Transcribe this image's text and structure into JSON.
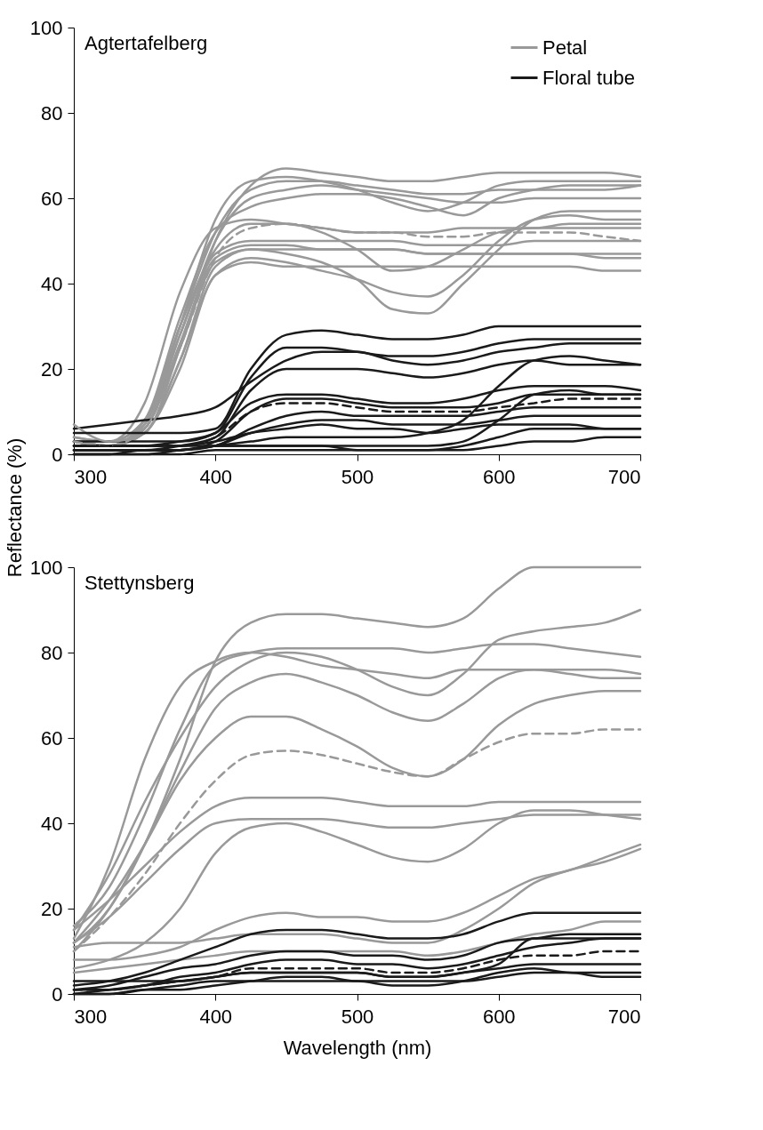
{
  "chart_data": [
    {
      "type": "line",
      "title": "Agtertafelberg",
      "ylabel": "Reflectance (%)",
      "xlim": [
        300,
        700
      ],
      "ylim": [
        0,
        100
      ],
      "xticks": [
        300,
        400,
        500,
        600,
        700
      ],
      "yticks": [
        0,
        20,
        40,
        60,
        80,
        100
      ],
      "grid": false,
      "legend": "top right",
      "x": [
        300,
        325,
        350,
        375,
        400,
        425,
        450,
        475,
        500,
        525,
        550,
        575,
        600,
        625,
        650,
        675,
        700
      ],
      "series": [
        {
          "name": "Petal",
          "color": "#999999",
          "values": [
            7,
            3,
            5,
            25,
            50,
            63,
            67,
            66,
            65,
            64,
            64,
            65,
            66,
            66,
            66,
            66,
            65
          ]
        },
        {
          "color": "#999999",
          "values": [
            4,
            3,
            8,
            30,
            52,
            62,
            64,
            64,
            63,
            62,
            61,
            61,
            62,
            62,
            62,
            62,
            63
          ]
        },
        {
          "color": "#999999",
          "values": [
            3,
            2,
            6,
            28,
            50,
            60,
            62,
            63,
            62,
            61,
            60,
            59,
            59,
            60,
            60,
            60,
            60
          ]
        },
        {
          "color": "#999999",
          "values": [
            3,
            2,
            6,
            25,
            45,
            48,
            47,
            45,
            41,
            34,
            33,
            40,
            48,
            55,
            57,
            57,
            57
          ]
        },
        {
          "color": "#999999",
          "values": [
            2,
            2,
            5,
            22,
            42,
            46,
            45,
            43,
            41,
            38,
            37,
            42,
            50,
            55,
            56,
            55,
            55
          ]
        },
        {
          "color": "#999999",
          "values": [
            3,
            3,
            8,
            30,
            48,
            54,
            54,
            52,
            48,
            43,
            44,
            48,
            52,
            53,
            53,
            53,
            53
          ]
        },
        {
          "color": "#999999",
          "values": [
            4,
            3,
            12,
            38,
            53,
            55,
            54,
            53,
            52,
            52,
            52,
            53,
            53,
            53,
            54,
            54,
            54
          ]
        },
        {
          "color": "#999999",
          "values": [
            3,
            2,
            6,
            26,
            46,
            49,
            49,
            48,
            48,
            48,
            47,
            47,
            47,
            47,
            47,
            46,
            46
          ]
        },
        {
          "color": "#999999",
          "values": [
            2,
            2,
            5,
            22,
            44,
            48,
            48,
            48,
            48,
            48,
            47,
            47,
            47,
            47,
            47,
            47,
            47
          ]
        },
        {
          "color": "#999999",
          "values": [
            3,
            2,
            7,
            28,
            47,
            50,
            50,
            50,
            50,
            50,
            49,
            49,
            49,
            50,
            50,
            50,
            50
          ]
        },
        {
          "color": "#999999",
          "values": [
            2,
            2,
            5,
            20,
            42,
            45,
            44,
            44,
            44,
            44,
            44,
            44,
            44,
            44,
            44,
            43,
            43
          ]
        },
        {
          "color": "#999999",
          "values": [
            3,
            2,
            8,
            32,
            52,
            58,
            60,
            61,
            61,
            60,
            58,
            56,
            60,
            62,
            63,
            63,
            63
          ]
        },
        {
          "color": "#999999",
          "line_style": "dashed",
          "values": [
            3,
            2,
            6,
            25,
            46,
            53,
            54,
            53,
            52,
            52,
            51,
            51,
            52,
            52,
            52,
            51,
            50
          ]
        },
        {
          "color": "#999999",
          "values": [
            3,
            2,
            7,
            30,
            55,
            64,
            65,
            64,
            62,
            59,
            57,
            59,
            63,
            64,
            64,
            64,
            64
          ]
        },
        {
          "name": "Floral tube",
          "color": "#1a1a1a",
          "values": [
            5,
            5,
            5,
            5,
            6,
            20,
            28,
            29,
            28,
            27,
            27,
            28,
            30,
            30,
            30,
            30,
            30
          ]
        },
        {
          "color": "#1a1a1a",
          "values": [
            2,
            2,
            2,
            3,
            5,
            18,
            25,
            25,
            24,
            23,
            23,
            24,
            26,
            27,
            27,
            27,
            27
          ]
        },
        {
          "color": "#1a1a1a",
          "values": [
            6,
            7,
            8,
            9,
            11,
            17,
            22,
            24,
            24,
            22,
            21,
            22,
            24,
            25,
            26,
            26,
            26
          ]
        },
        {
          "color": "#1a1a1a",
          "values": [
            1,
            1,
            1,
            2,
            4,
            15,
            20,
            20,
            20,
            19,
            18,
            19,
            21,
            22,
            21,
            21,
            21
          ]
        },
        {
          "color": "#1a1a1a",
          "values": [
            0,
            0,
            1,
            1,
            2,
            3,
            4,
            4,
            4,
            4,
            5,
            8,
            16,
            22,
            23,
            22,
            21
          ]
        },
        {
          "color": "#1a1a1a",
          "values": [
            3,
            3,
            3,
            3,
            5,
            12,
            14,
            14,
            13,
            12,
            12,
            13,
            15,
            16,
            16,
            16,
            15
          ]
        },
        {
          "color": "#1a1a1a",
          "values": [
            1,
            1,
            1,
            1,
            3,
            10,
            13,
            13,
            12,
            11,
            11,
            11,
            12,
            14,
            14,
            14,
            14
          ]
        },
        {
          "color": "#1a1a1a",
          "line_style": "dashed",
          "values": [
            2,
            2,
            2,
            2,
            4,
            10,
            12,
            12,
            11,
            10,
            10,
            10,
            11,
            12,
            13,
            13,
            13
          ]
        },
        {
          "color": "#1a1a1a",
          "values": [
            1,
            1,
            1,
            1,
            2,
            6,
            9,
            10,
            9,
            9,
            9,
            9,
            10,
            11,
            11,
            11,
            11
          ]
        },
        {
          "color": "#1a1a1a",
          "values": [
            0,
            0,
            0,
            1,
            2,
            5,
            7,
            8,
            8,
            7,
            7,
            7,
            8,
            9,
            9,
            9,
            9
          ]
        },
        {
          "color": "#1a1a1a",
          "values": [
            2,
            2,
            2,
            2,
            3,
            5,
            6,
            7,
            6,
            6,
            5,
            6,
            7,
            7,
            7,
            6,
            6
          ]
        },
        {
          "color": "#1a1a1a",
          "values": [
            1,
            1,
            1,
            1,
            2,
            2,
            2,
            2,
            1,
            1,
            1,
            2,
            4,
            6,
            6,
            6,
            6
          ]
        },
        {
          "color": "#1a1a1a",
          "values": [
            0,
            0,
            0,
            0,
            1,
            1,
            1,
            1,
            1,
            1,
            1,
            1,
            2,
            3,
            3,
            4,
            4
          ]
        },
        {
          "color": "#1a1a1a",
          "values": [
            2,
            2,
            2,
            2,
            2,
            2,
            2,
            2,
            2,
            2,
            2,
            3,
            8,
            14,
            15,
            14,
            14
          ]
        }
      ]
    },
    {
      "type": "line",
      "title": "Stettynsberg",
      "xlabel": "Wavelength (nm)",
      "xlim": [
        300,
        700
      ],
      "ylim": [
        0,
        100
      ],
      "xticks": [
        300,
        400,
        500,
        600,
        700
      ],
      "yticks": [
        0,
        20,
        40,
        60,
        80,
        100
      ],
      "grid": false,
      "x": [
        300,
        325,
        350,
        375,
        400,
        425,
        450,
        475,
        500,
        525,
        550,
        575,
        600,
        625,
        650,
        675,
        700
      ],
      "series": [
        {
          "color": "#999999",
          "values": [
            12,
            20,
            35,
            55,
            78,
            87,
            89,
            89,
            88,
            87,
            86,
            88,
            95,
            100,
            100,
            100,
            100
          ]
        },
        {
          "color": "#999999",
          "values": [
            16,
            25,
            42,
            62,
            77,
            80,
            81,
            81,
            81,
            81,
            80,
            81,
            82,
            82,
            81,
            80,
            79
          ]
        },
        {
          "color": "#999999",
          "values": [
            13,
            30,
            55,
            72,
            78,
            80,
            79,
            77,
            76,
            75,
            74,
            76,
            76,
            76,
            76,
            76,
            75
          ]
        },
        {
          "color": "#999999",
          "values": [
            15,
            28,
            45,
            60,
            72,
            78,
            80,
            79,
            76,
            72,
            70,
            75,
            83,
            85,
            86,
            87,
            90
          ]
        },
        {
          "color": "#999999",
          "values": [
            10,
            20,
            35,
            52,
            67,
            73,
            75,
            73,
            70,
            66,
            64,
            68,
            74,
            76,
            75,
            74,
            74
          ]
        },
        {
          "color": "#999999",
          "values": [
            12,
            22,
            35,
            50,
            60,
            65,
            65,
            62,
            58,
            53,
            51,
            55,
            63,
            68,
            70,
            71,
            71
          ]
        },
        {
          "color": "#999999",
          "line_style": "dashed",
          "values": [
            10,
            18,
            28,
            40,
            50,
            56,
            57,
            56,
            54,
            52,
            51,
            55,
            59,
            61,
            61,
            62,
            62
          ]
        },
        {
          "color": "#999999",
          "values": [
            15,
            22,
            30,
            38,
            44,
            46,
            46,
            46,
            45,
            44,
            44,
            44,
            45,
            45,
            45,
            45,
            45
          ]
        },
        {
          "color": "#999999",
          "values": [
            12,
            18,
            26,
            34,
            40,
            41,
            41,
            41,
            40,
            39,
            39,
            40,
            41,
            42,
            42,
            42,
            42
          ]
        },
        {
          "color": "#999999",
          "values": [
            6,
            8,
            12,
            20,
            33,
            39,
            40,
            38,
            35,
            32,
            31,
            34,
            40,
            43,
            43,
            42,
            41
          ]
        },
        {
          "color": "#999999",
          "values": [
            8,
            8,
            9,
            11,
            15,
            18,
            19,
            18,
            18,
            17,
            17,
            19,
            23,
            27,
            29,
            32,
            35
          ]
        },
        {
          "color": "#999999",
          "values": [
            11,
            12,
            12,
            12,
            13,
            14,
            14,
            14,
            13,
            12,
            12,
            15,
            20,
            26,
            29,
            31,
            34
          ]
        },
        {
          "color": "#999999",
          "values": [
            5,
            6,
            7,
            8,
            9,
            10,
            10,
            10,
            10,
            10,
            9,
            10,
            12,
            14,
            15,
            17,
            17
          ]
        },
        {
          "color": "#1a1a1a",
          "values": [
            2,
            3,
            5,
            8,
            11,
            14,
            15,
            15,
            14,
            13,
            13,
            14,
            17,
            19,
            19,
            19,
            19
          ]
        },
        {
          "color": "#1a1a1a",
          "values": [
            1,
            2,
            4,
            6,
            7,
            9,
            10,
            10,
            9,
            9,
            8,
            9,
            12,
            13,
            14,
            14,
            14
          ]
        },
        {
          "color": "#1a1a1a",
          "values": [
            1,
            1,
            2,
            4,
            5,
            7,
            8,
            8,
            7,
            7,
            6,
            7,
            9,
            11,
            12,
            13,
            13
          ]
        },
        {
          "color": "#1a1a1a",
          "line_style": "dashed",
          "values": [
            1,
            1,
            2,
            3,
            4,
            6,
            6,
            6,
            6,
            5,
            5,
            6,
            8,
            9,
            9,
            10,
            10
          ]
        },
        {
          "color": "#1a1a1a",
          "values": [
            0,
            1,
            2,
            3,
            4,
            5,
            5,
            5,
            5,
            4,
            4,
            5,
            6,
            7,
            7,
            7,
            7
          ]
        },
        {
          "color": "#1a1a1a",
          "values": [
            0,
            0,
            1,
            2,
            3,
            3,
            3,
            3,
            3,
            2,
            2,
            3,
            5,
            6,
            5,
            5,
            5
          ]
        },
        {
          "color": "#1a1a1a",
          "values": [
            0,
            0,
            1,
            1,
            2,
            3,
            4,
            4,
            3,
            3,
            3,
            3,
            4,
            5,
            5,
            4,
            4
          ]
        },
        {
          "color": "#1a1a1a",
          "values": [
            3,
            3,
            3,
            3,
            4,
            5,
            5,
            5,
            5,
            4,
            4,
            5,
            7,
            13,
            13,
            13,
            13
          ]
        }
      ]
    }
  ]
}
